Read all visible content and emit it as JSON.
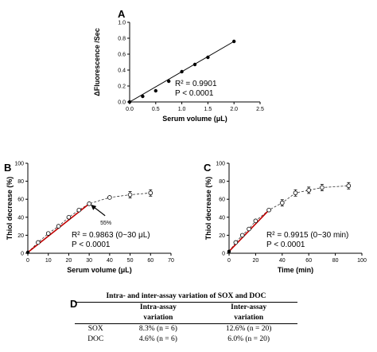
{
  "chart_data": [
    {
      "panel": "A",
      "type": "scatter",
      "xlabel": "Serum volume (μL)",
      "ylabel": "ΔFluorescence /Sec",
      "xlim": [
        0,
        2.5
      ],
      "ylim": [
        0,
        1.0
      ],
      "x_ticks": [
        "0.0",
        "0.5",
        "1.0",
        "1.5",
        "2.0",
        "2.5"
      ],
      "y_ticks": [
        "0.0",
        "0.2",
        "0.4",
        "0.6",
        "0.8",
        "1.0"
      ],
      "points": {
        "x": [
          0,
          0.25,
          0.5,
          0.75,
          1.0,
          1.25,
          1.5,
          2.0
        ],
        "y": [
          0.0,
          0.07,
          0.14,
          0.26,
          0.38,
          0.47,
          0.56,
          0.76
        ]
      },
      "fit": {
        "x": [
          0,
          2.0
        ],
        "y": [
          0.0,
          0.76
        ]
      },
      "r2_text": "R² = 0.9901",
      "p_text": "P < 0.0001"
    },
    {
      "panel": "B",
      "type": "line",
      "xlabel": "Serum volume (μL)",
      "ylabel": "Thiol decrease (%)",
      "xlim": [
        0,
        70
      ],
      "ylim": [
        0,
        100
      ],
      "x_ticks": [
        "0",
        "10",
        "20",
        "30",
        "40",
        "50",
        "60",
        "70"
      ],
      "y_ticks": [
        "0",
        "20",
        "40",
        "60",
        "80",
        "100"
      ],
      "points": {
        "x": [
          0,
          5,
          10,
          15,
          20,
          25,
          30,
          40,
          50,
          60
        ],
        "y": [
          1,
          12,
          22,
          30,
          40,
          48,
          55,
          62,
          65,
          67
        ]
      },
      "fit": {
        "x": [
          0,
          30
        ],
        "y": [
          1,
          55
        ]
      },
      "annotation": "55%",
      "r2_text": "R² = 0.9863 (0~30 μL)",
      "p_text": "P < 0.0001"
    },
    {
      "panel": "C",
      "type": "line",
      "xlabel": "Time (min)",
      "ylabel": "Thiol decrease (%)",
      "xlim": [
        0,
        100
      ],
      "ylim": [
        0,
        100
      ],
      "x_ticks": [
        "0",
        "20",
        "40",
        "60",
        "80",
        "100"
      ],
      "y_ticks": [
        "0",
        "20",
        "40",
        "60",
        "80",
        "100"
      ],
      "points": {
        "x": [
          0,
          5,
          10,
          15,
          20,
          30,
          40,
          50,
          60,
          70,
          90
        ],
        "y": [
          2,
          12,
          20,
          27,
          36,
          48,
          56,
          67,
          70,
          73,
          75
        ]
      },
      "fit": {
        "x": [
          0,
          30
        ],
        "y": [
          2,
          48
        ]
      },
      "r2_text": "R² = 0.9915 (0~30 min)",
      "p_text": "P < 0.0001"
    }
  ],
  "table": {
    "letter": "D",
    "caption": "Intra- and inter-assay variation of SOX and DOC",
    "headers": [
      {
        "l1": "",
        "l2": ""
      },
      {
        "l1": "Intra-assay",
        "l2": "variation"
      },
      {
        "l1": "Inter-assay",
        "l2": "variation"
      }
    ],
    "rows": [
      {
        "name": "SOX",
        "intra": "8.3% (n = 6)",
        "inter": "12.6% (n = 20)"
      },
      {
        "name": "DOC",
        "intra": "4.6% (n = 6)",
        "inter": "6.0% (n = 20)"
      }
    ]
  },
  "panels": {
    "a": "A",
    "b": "B",
    "c": "C"
  }
}
